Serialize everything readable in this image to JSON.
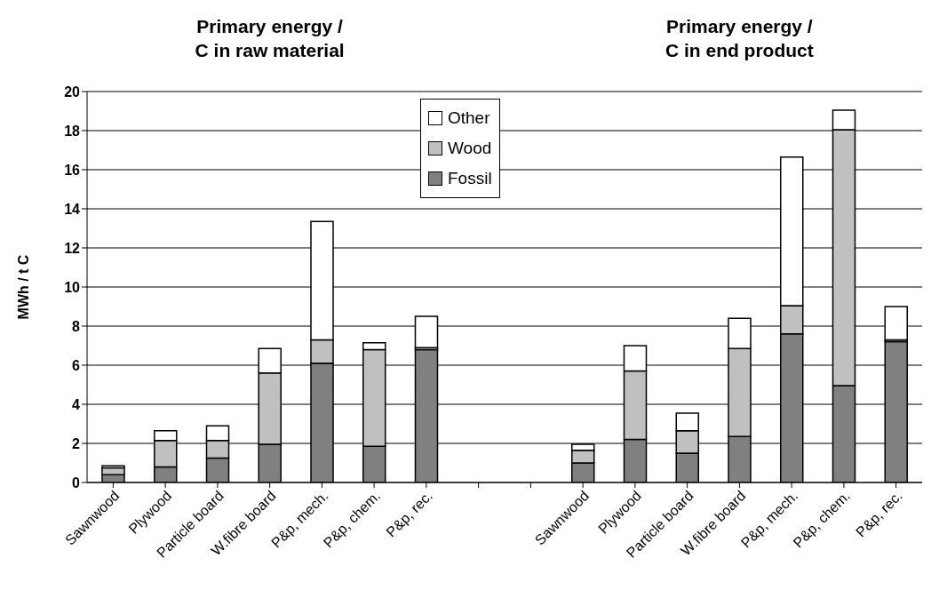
{
  "chart_data": {
    "type": "bar",
    "stacked": true,
    "ylabel": "MWh / t C",
    "annotations": [
      "Primary energy /\nC in raw material",
      "Primary energy /\nC in end product"
    ],
    "categories": [
      "Sawnwood",
      "Plywood",
      "Particle board",
      "W.fibre board",
      "P&p, mech.",
      "P&p, chem.",
      "P&p, rec.",
      null,
      null,
      "Sawnwood",
      "Plywood",
      "Particle board",
      "W.fibre board",
      "P&p, mech.",
      "P&p, chem.",
      "P&p, rec."
    ],
    "series": [
      {
        "name": "Fossil",
        "color": "#808080",
        "values": [
          0.4,
          0.8,
          1.25,
          1.95,
          6.1,
          1.85,
          6.8,
          null,
          null,
          1.0,
          2.2,
          1.5,
          2.35,
          7.6,
          4.95,
          7.2
        ]
      },
      {
        "name": "Wood",
        "color": "#c0c0c0",
        "values": [
          0.35,
          1.35,
          0.9,
          3.65,
          1.2,
          4.95,
          0.1,
          null,
          null,
          0.65,
          3.5,
          1.15,
          4.5,
          1.45,
          13.1,
          0.1
        ]
      },
      {
        "name": "Other",
        "color": "#ffffff",
        "values": [
          0.1,
          0.5,
          0.75,
          1.25,
          6.05,
          0.35,
          1.6,
          null,
          null,
          0.3,
          1.3,
          0.9,
          1.55,
          7.6,
          1.0,
          1.7
        ]
      }
    ],
    "ylim": [
      0,
      20
    ],
    "yticks": [
      0,
      2,
      4,
      6,
      8,
      10,
      12,
      14,
      16,
      18,
      20
    ],
    "grid": "y",
    "legend": "top"
  }
}
